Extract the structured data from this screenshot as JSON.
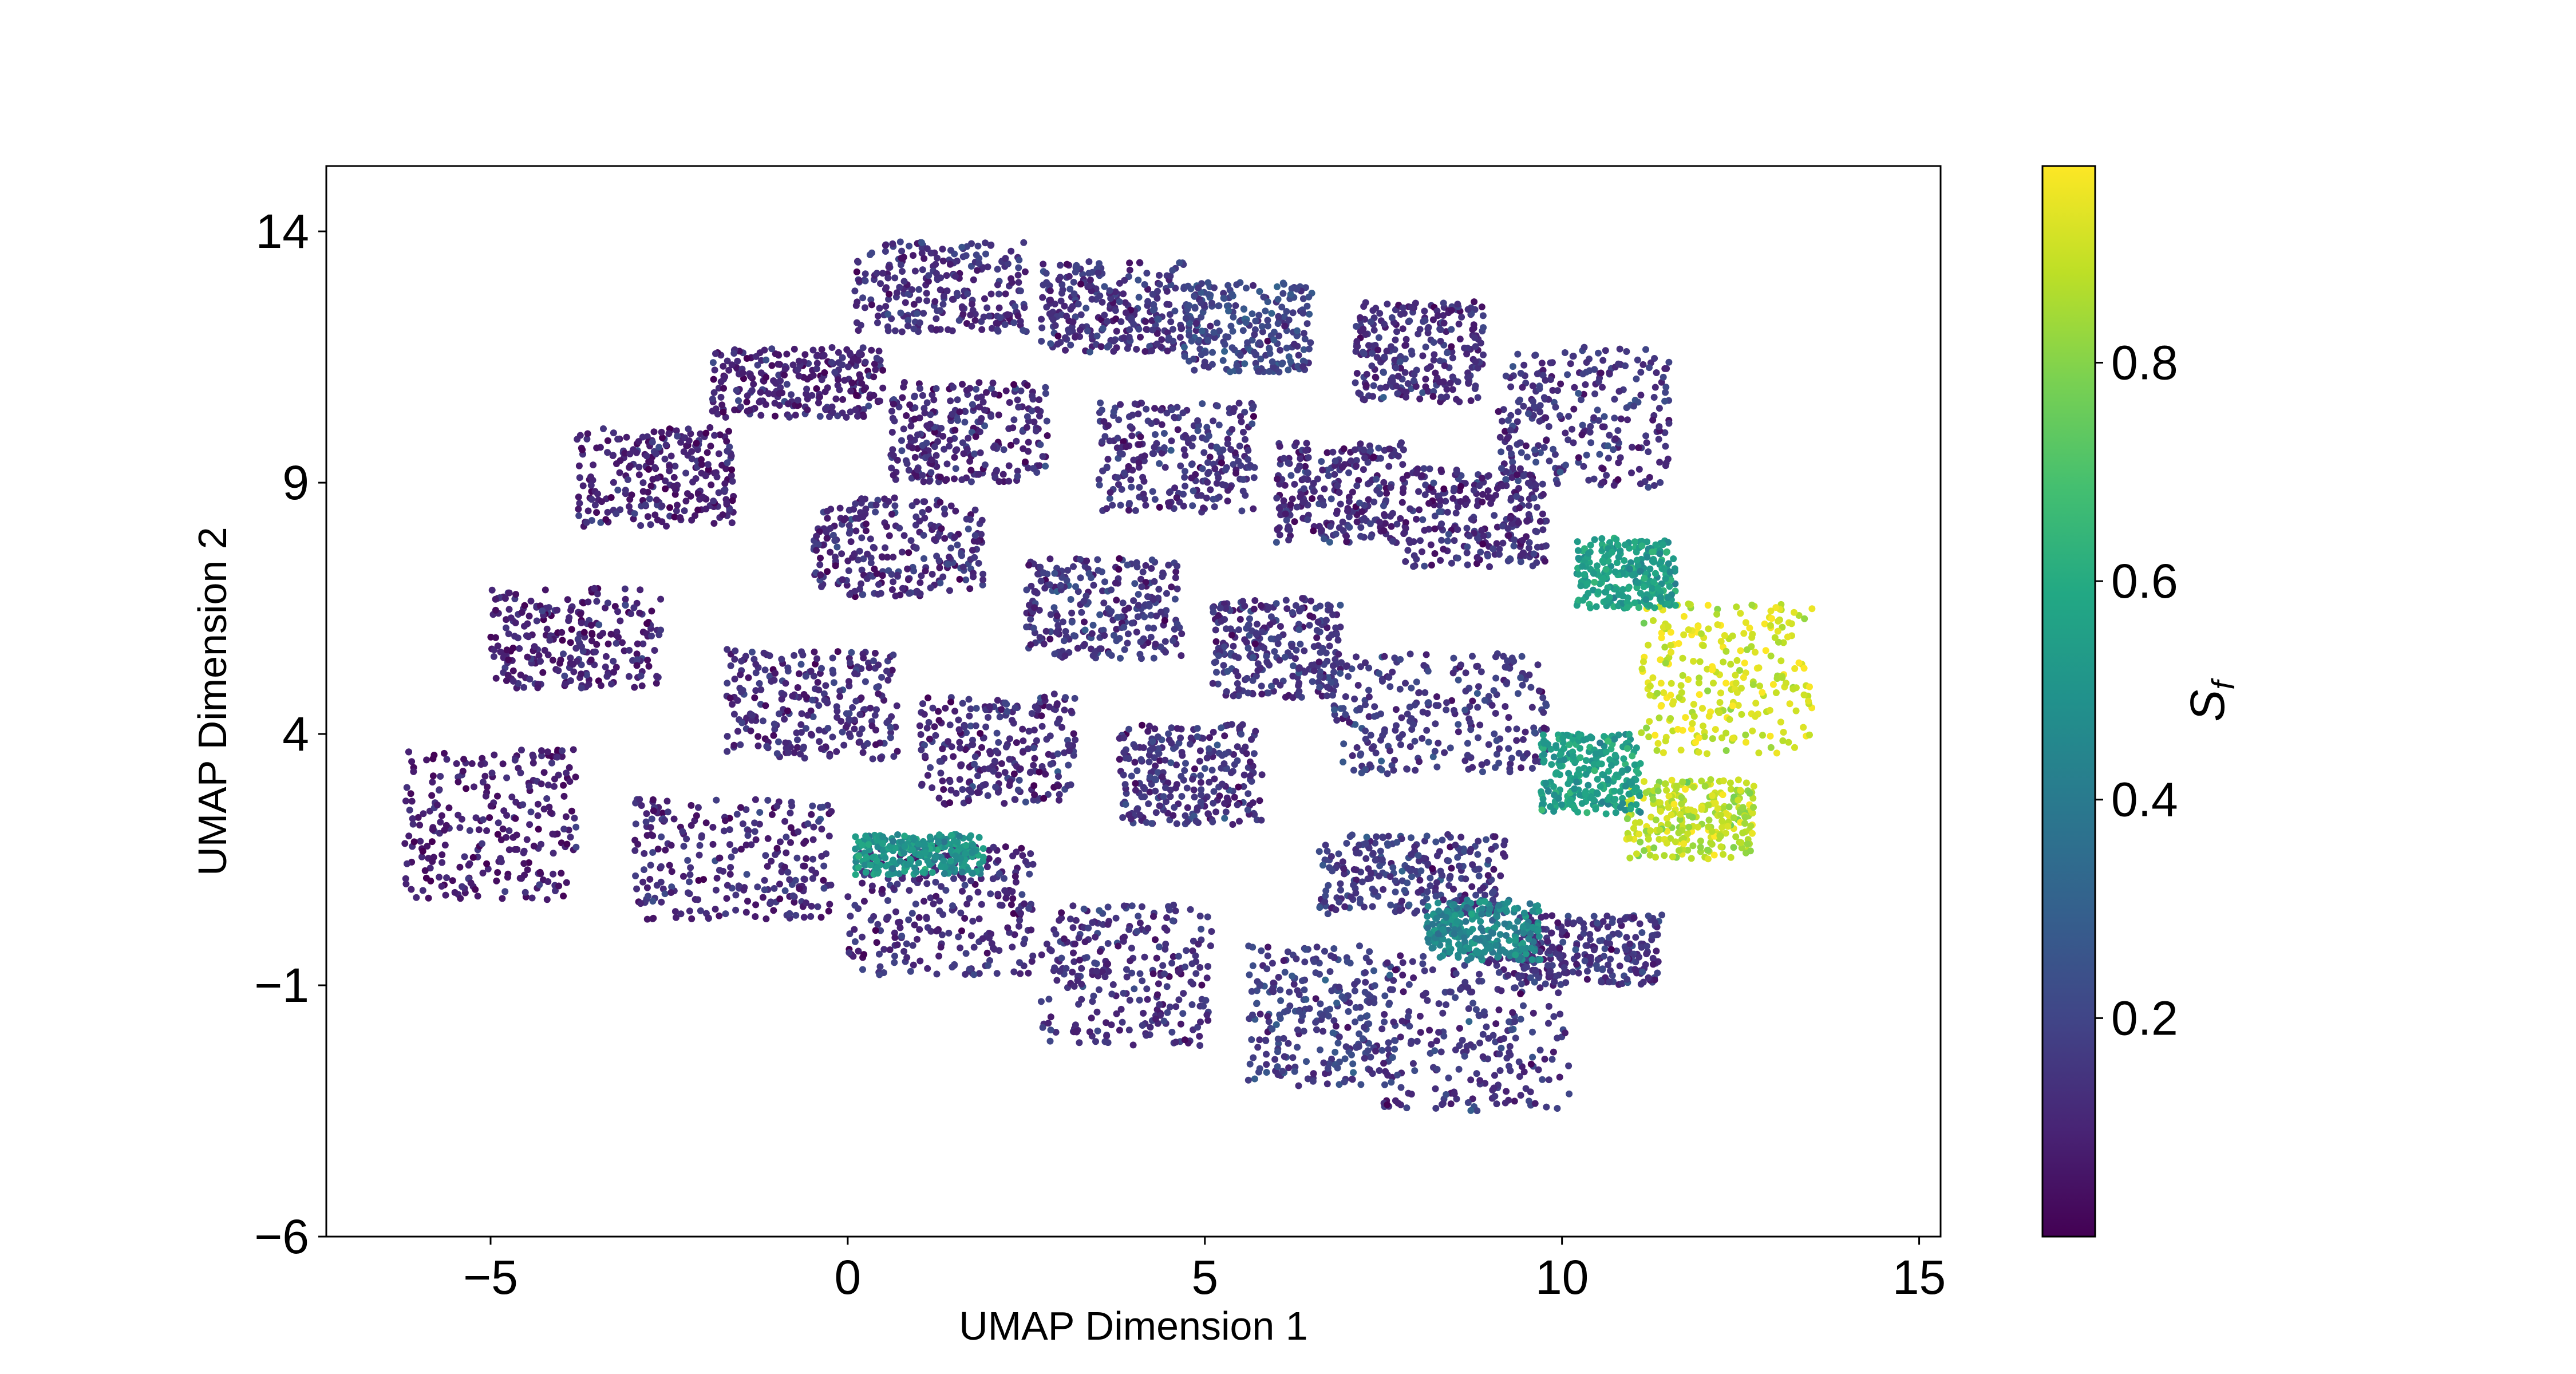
{
  "chart_data": {
    "type": "scatter",
    "title": "",
    "xlabel": "UMAP Dimension 1",
    "ylabel": "UMAP Dimension 2",
    "xlim": [
      -7.3,
      15.3
    ],
    "ylim": [
      -6,
      15.3
    ],
    "x_ticks": [
      -5,
      0,
      5,
      10,
      15
    ],
    "x_tick_labels": [
      "−5",
      "0",
      "5",
      "10",
      "15"
    ],
    "y_ticks": [
      -6,
      -1,
      4,
      9,
      14
    ],
    "y_tick_labels": [
      "−6",
      "−1",
      "4",
      "9",
      "14"
    ],
    "grid": false,
    "colormap": "viridis",
    "colorbar": {
      "label": "S",
      "label_subscript": "f",
      "range": [
        0,
        0.98
      ],
      "ticks": [
        0.2,
        0.4,
        0.6,
        0.8
      ],
      "tick_labels": [
        "0.2",
        "0.4",
        "0.6",
        "0.8"
      ]
    },
    "description_clusters": [
      {
        "center": [
          1.3,
          12.9
        ],
        "spread": [
          1.2,
          0.9
        ],
        "value": 0.13
      },
      {
        "center": [
          3.7,
          12.5
        ],
        "spread": [
          1.0,
          0.9
        ],
        "value": 0.14
      },
      {
        "center": [
          5.6,
          12.1
        ],
        "spread": [
          0.9,
          0.9
        ],
        "value": 0.2
      },
      {
        "center": [
          8.0,
          11.6
        ],
        "spread": [
          0.9,
          1.0
        ],
        "value": 0.13
      },
      {
        "center": [
          10.3,
          10.3
        ],
        "spread": [
          1.2,
          1.4
        ],
        "value": 0.15
      },
      {
        "center": [
          -0.7,
          11.0
        ],
        "spread": [
          1.2,
          0.7
        ],
        "value": 0.1
      },
      {
        "center": [
          1.7,
          10.0
        ],
        "spread": [
          1.1,
          1.0
        ],
        "value": 0.12
      },
      {
        "center": [
          4.6,
          9.5
        ],
        "spread": [
          1.1,
          1.1
        ],
        "value": 0.14
      },
      {
        "center": [
          6.9,
          8.8
        ],
        "spread": [
          0.9,
          1.0
        ],
        "value": 0.13
      },
      {
        "center": [
          8.8,
          8.3
        ],
        "spread": [
          1.0,
          1.0
        ],
        "value": 0.12
      },
      {
        "center": [
          -2.7,
          9.1
        ],
        "spread": [
          1.1,
          1.0
        ],
        "value": 0.09
      },
      {
        "center": [
          0.7,
          7.7
        ],
        "spread": [
          1.2,
          1.0
        ],
        "value": 0.12
      },
      {
        "center": [
          3.6,
          6.5
        ],
        "spread": [
          1.1,
          1.0
        ],
        "value": 0.15
      },
      {
        "center": [
          6.0,
          5.7
        ],
        "spread": [
          0.9,
          1.0
        ],
        "value": 0.15
      },
      {
        "center": [
          -3.8,
          5.9
        ],
        "spread": [
          1.2,
          1.0
        ],
        "value": 0.09
      },
      {
        "center": [
          -0.5,
          4.6
        ],
        "spread": [
          1.2,
          1.1
        ],
        "value": 0.12
      },
      {
        "center": [
          2.1,
          3.7
        ],
        "spread": [
          1.1,
          1.1
        ],
        "value": 0.13
      },
      {
        "center": [
          4.8,
          3.2
        ],
        "spread": [
          1.0,
          1.0
        ],
        "value": 0.14
      },
      {
        "center": [
          8.3,
          4.4
        ],
        "spread": [
          1.5,
          1.2
        ],
        "value": 0.16
      },
      {
        "center": [
          -5.0,
          2.2
        ],
        "spread": [
          1.2,
          1.5
        ],
        "value": 0.08
      },
      {
        "center": [
          -1.6,
          1.5
        ],
        "spread": [
          1.4,
          1.2
        ],
        "value": 0.12
      },
      {
        "center": [
          1.3,
          0.5
        ],
        "spread": [
          1.3,
          1.3
        ],
        "value": 0.12
      },
      {
        "center": [
          3.9,
          -0.8
        ],
        "spread": [
          1.2,
          1.4
        ],
        "value": 0.13
      },
      {
        "center": [
          6.6,
          -1.6
        ],
        "spread": [
          1.0,
          1.4
        ],
        "value": 0.18
      },
      {
        "center": [
          8.8,
          -1.9
        ],
        "spread": [
          1.3,
          1.6
        ],
        "value": 0.15
      },
      {
        "center": [
          7.9,
          1.2
        ],
        "spread": [
          1.3,
          0.8
        ],
        "value": 0.16
      },
      {
        "center": [
          10.4,
          -0.3
        ],
        "spread": [
          1.0,
          0.7
        ],
        "value": 0.15
      },
      {
        "center": [
          12.3,
          5.1
        ],
        "spread": [
          1.2,
          1.5
        ],
        "value": 0.92
      },
      {
        "center": [
          11.8,
          2.3
        ],
        "spread": [
          0.9,
          0.8
        ],
        "value": 0.88
      },
      {
        "center": [
          10.9,
          7.2
        ],
        "spread": [
          0.7,
          0.7
        ],
        "value": 0.55
      },
      {
        "center": [
          10.4,
          3.2
        ],
        "spread": [
          0.7,
          0.8
        ],
        "value": 0.55
      },
      {
        "center": [
          1.0,
          1.6
        ],
        "spread": [
          0.9,
          0.4
        ],
        "value": 0.5
      },
      {
        "center": [
          8.9,
          0.1
        ],
        "spread": [
          0.8,
          0.6
        ],
        "value": 0.45
      }
    ]
  }
}
